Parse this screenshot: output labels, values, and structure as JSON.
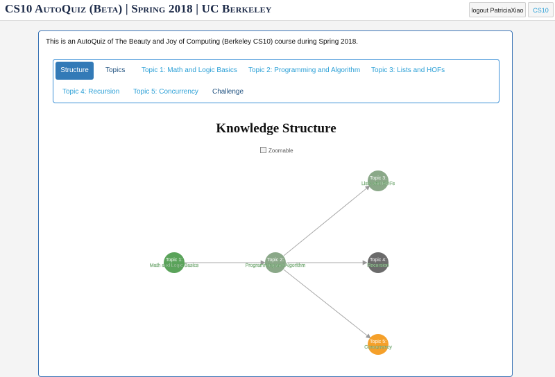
{
  "header": {
    "site_title": "CS10 AutoQuiz (Beta) | Spring 2018 | UC Berkeley",
    "logout_label": "logout PatriciaXiao",
    "course_label": "CS10"
  },
  "main": {
    "intro_text": "This is an AutoQuiz of The Beauty and Joy of Computing (Berkeley CS10) course during Spring 2018.",
    "tabs": [
      {
        "label": "Structure"
      },
      {
        "label": "Topics"
      },
      {
        "label": "Topic 1: Math and Logic Basics"
      },
      {
        "label": "Topic 2: Programming and Algorithm"
      },
      {
        "label": "Topic 3: Lists and HOFs"
      },
      {
        "label": "Topic 4: Recursion"
      },
      {
        "label": "Topic 5: Concurrency"
      },
      {
        "label": "Challenge"
      }
    ],
    "graph_title": "Knowledge Structure",
    "zoom_label": "Zoomable"
  },
  "graph": {
    "nodes": [
      {
        "line1": "Topic 1:",
        "line2": "Math and Logic Basics",
        "color": "#5aa35a"
      },
      {
        "line1": "Topic 2:",
        "line2": "Programming and Algorithm",
        "color": "#8aa888"
      },
      {
        "line1": "Topic 3:",
        "line2": "Lists and HOFs",
        "color": "#8aa888"
      },
      {
        "line1": "Topic 4:",
        "line2": "Recursion",
        "color": "#6b6b6b"
      },
      {
        "line1": "Topic 5:",
        "line2": "Concurrency",
        "color": "#f5a02a"
      }
    ]
  },
  "colors": {
    "accent": "#337ab7",
    "link": "#2a9fd6",
    "panel_border": "#3a73b5"
  }
}
